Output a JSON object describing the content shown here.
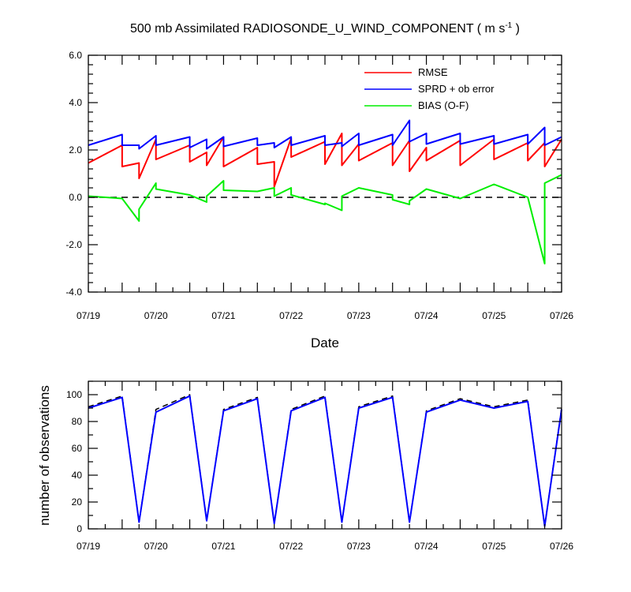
{
  "chart_data": [
    {
      "type": "line",
      "title": "500 mb Assimilated RADIOSONDE_U_WIND_COMPONENT ( m s",
      "title_sup": "-1",
      "title_close": " )",
      "xlabel": "Date",
      "ylabel": "",
      "x_ticks": [
        {
          "x": 0,
          "label": "07/19"
        },
        {
          "x": 1,
          "label": "07/20"
        },
        {
          "x": 2,
          "label": "07/21"
        },
        {
          "x": 3,
          "label": "07/22"
        },
        {
          "x": 4,
          "label": "07/23"
        },
        {
          "x": 5,
          "label": "07/24"
        },
        {
          "x": 6,
          "label": "07/25"
        },
        {
          "x": 7,
          "label": "07/26"
        }
      ],
      "xlim": [
        0,
        7
      ],
      "ylim": [
        -4,
        6
      ],
      "y_ticks": [
        {
          "y": 6,
          "label": "6.0"
        },
        {
          "y": 4,
          "label": "4.0"
        },
        {
          "y": 2,
          "label": "2.0"
        },
        {
          "y": 0,
          "label": "0.0"
        },
        {
          "y": -2,
          "label": "-2.0"
        },
        {
          "y": -4,
          "label": "-4.0"
        }
      ],
      "zero_line": true,
      "legend_position": "top-right",
      "series": [
        {
          "name": "RMSE",
          "color": "#ff0000",
          "points": [
            [
              0,
              1.45
            ],
            [
              0.5,
              2.2
            ],
            [
              0.5,
              1.3
            ],
            [
              0.75,
              1.45
            ],
            [
              0.75,
              0.8
            ],
            [
              1,
              2.45
            ],
            [
              1,
              1.6
            ],
            [
              1.5,
              2.2
            ],
            [
              1.5,
              1.5
            ],
            [
              1.75,
              1.9
            ],
            [
              1.75,
              1.35
            ],
            [
              2,
              2.55
            ],
            [
              2,
              1.3
            ],
            [
              2.5,
              2.1
            ],
            [
              2.5,
              1.4
            ],
            [
              2.75,
              1.5
            ],
            [
              2.75,
              0.45
            ],
            [
              3,
              2.5
            ],
            [
              3,
              1.7
            ],
            [
              3.5,
              2.35
            ],
            [
              3.5,
              1.4
            ],
            [
              3.75,
              2.7
            ],
            [
              3.75,
              1.35
            ],
            [
              4,
              2.25
            ],
            [
              4,
              1.55
            ],
            [
              4.5,
              2.3
            ],
            [
              4.5,
              1.35
            ],
            [
              4.75,
              2.4
            ],
            [
              4.75,
              1.1
            ],
            [
              5,
              2.1
            ],
            [
              5,
              1.55
            ],
            [
              5.5,
              2.4
            ],
            [
              5.5,
              1.35
            ],
            [
              6,
              2.45
            ],
            [
              6,
              1.6
            ],
            [
              6.5,
              2.3
            ],
            [
              6.5,
              1.55
            ],
            [
              6.75,
              2.3
            ],
            [
              6.75,
              1.3
            ],
            [
              7,
              2.45
            ]
          ]
        },
        {
          "name": "SPRD + ob error",
          "color": "#0000ff",
          "points": [
            [
              0,
              2.2
            ],
            [
              0.5,
              2.65
            ],
            [
              0.5,
              2.2
            ],
            [
              0.75,
              2.2
            ],
            [
              0.75,
              2.05
            ],
            [
              1,
              2.6
            ],
            [
              1,
              2.2
            ],
            [
              1.5,
              2.55
            ],
            [
              1.5,
              2.1
            ],
            [
              1.75,
              2.45
            ],
            [
              1.75,
              2.05
            ],
            [
              2,
              2.55
            ],
            [
              2,
              2.15
            ],
            [
              2.5,
              2.5
            ],
            [
              2.5,
              2.2
            ],
            [
              2.75,
              2.3
            ],
            [
              2.75,
              2.1
            ],
            [
              3,
              2.55
            ],
            [
              3,
              2.2
            ],
            [
              3.5,
              2.6
            ],
            [
              3.5,
              2.2
            ],
            [
              3.75,
              2.3
            ],
            [
              3.75,
              2.15
            ],
            [
              4,
              2.7
            ],
            [
              4,
              2.2
            ],
            [
              4.5,
              2.65
            ],
            [
              4.5,
              2.2
            ],
            [
              4.75,
              3.25
            ],
            [
              4.75,
              2.35
            ],
            [
              5,
              2.7
            ],
            [
              5,
              2.25
            ],
            [
              5.5,
              2.7
            ],
            [
              5.5,
              2.25
            ],
            [
              6,
              2.6
            ],
            [
              6,
              2.25
            ],
            [
              6.5,
              2.65
            ],
            [
              6.5,
              2.25
            ],
            [
              6.75,
              2.95
            ],
            [
              6.75,
              2.2
            ],
            [
              7,
              2.55
            ]
          ]
        },
        {
          "name": "BIAS (O-F)",
          "color": "#00ee00",
          "points": [
            [
              0,
              0.05
            ],
            [
              0.5,
              -0.05
            ],
            [
              0.75,
              -1.0
            ],
            [
              0.75,
              -0.5
            ],
            [
              1,
              0.6
            ],
            [
              1,
              0.35
            ],
            [
              1.5,
              0.1
            ],
            [
              1.75,
              -0.2
            ],
            [
              1.75,
              0.05
            ],
            [
              2,
              0.7
            ],
            [
              2,
              0.3
            ],
            [
              2.5,
              0.25
            ],
            [
              2.75,
              0.4
            ],
            [
              2.75,
              0.05
            ],
            [
              3,
              0.4
            ],
            [
              3,
              0.1
            ],
            [
              3.5,
              -0.3
            ],
            [
              3.5,
              -0.25
            ],
            [
              3.75,
              -0.55
            ],
            [
              3.75,
              0.05
            ],
            [
              4,
              0.4
            ],
            [
              4.5,
              0.1
            ],
            [
              4.5,
              -0.1
            ],
            [
              4.75,
              -0.3
            ],
            [
              4.75,
              -0.15
            ],
            [
              5,
              0.35
            ],
            [
              5.5,
              -0.05
            ],
            [
              6,
              0.55
            ],
            [
              6.5,
              0.0
            ],
            [
              6.75,
              -2.8
            ],
            [
              6.75,
              0.6
            ],
            [
              7,
              0.95
            ]
          ]
        }
      ]
    },
    {
      "type": "line",
      "title": "",
      "xlabel": "",
      "ylabel": "number of observations",
      "x_ticks": [
        {
          "x": 0,
          "label": "07/19"
        },
        {
          "x": 1,
          "label": "07/20"
        },
        {
          "x": 2,
          "label": "07/21"
        },
        {
          "x": 3,
          "label": "07/22"
        },
        {
          "x": 4,
          "label": "07/23"
        },
        {
          "x": 5,
          "label": "07/24"
        },
        {
          "x": 6,
          "label": "07/25"
        },
        {
          "x": 7,
          "label": "07/26"
        }
      ],
      "xlim": [
        0,
        7
      ],
      "ylim": [
        0,
        110
      ],
      "y_ticks": [
        {
          "y": 100,
          "label": "100"
        },
        {
          "y": 80,
          "label": "80"
        },
        {
          "y": 60,
          "label": "60"
        },
        {
          "y": 40,
          "label": "40"
        },
        {
          "y": 20,
          "label": "20"
        },
        {
          "y": 0,
          "label": "0"
        }
      ],
      "series": [
        {
          "color": "#000000",
          "dashed": true,
          "points": [
            [
              0,
              91
            ],
            [
              0.5,
              99
            ],
            [
              0.75,
              5
            ],
            [
              1,
              89
            ],
            [
              1.5,
              100
            ],
            [
              1.75,
              6
            ],
            [
              2,
              89
            ],
            [
              2.5,
              98
            ],
            [
              2.75,
              4
            ],
            [
              3,
              89
            ],
            [
              3.5,
              99
            ],
            [
              3.75,
              5
            ],
            [
              4,
              91
            ],
            [
              4.5,
              99
            ],
            [
              4.75,
              5
            ],
            [
              5,
              88
            ],
            [
              5.5,
              97
            ],
            [
              6,
              91
            ],
            [
              6.5,
              96
            ],
            [
              6.75,
              2
            ],
            [
              7,
              90
            ]
          ]
        },
        {
          "color": "#0000ff",
          "dashed": false,
          "points": [
            [
              0,
              90
            ],
            [
              0.5,
              98
            ],
            [
              0.75,
              5
            ],
            [
              1,
              87
            ],
            [
              1.5,
              99
            ],
            [
              1.75,
              6
            ],
            [
              2,
              88
            ],
            [
              2.5,
              97
            ],
            [
              2.75,
              4
            ],
            [
              3,
              88
            ],
            [
              3.5,
              98
            ],
            [
              3.75,
              5
            ],
            [
              4,
              90
            ],
            [
              4.5,
              98
            ],
            [
              4.75,
              5
            ],
            [
              5,
              87
            ],
            [
              5.5,
              96
            ],
            [
              6,
              90
            ],
            [
              6.5,
              95
            ],
            [
              6.75,
              2
            ],
            [
              7,
              89
            ]
          ]
        }
      ]
    }
  ]
}
